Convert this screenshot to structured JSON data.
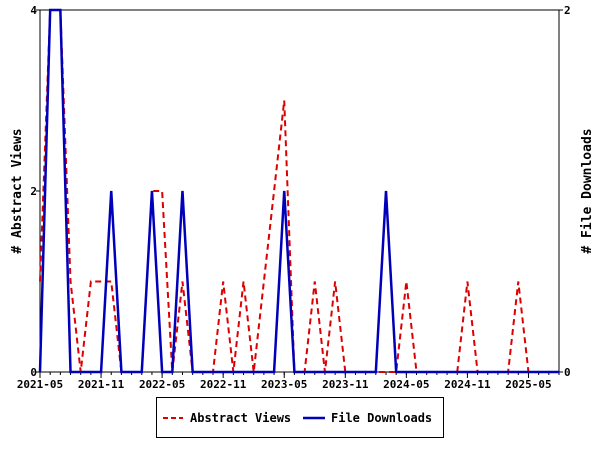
{
  "chart_data": {
    "type": "line",
    "x": [
      "2021-05",
      "2021-06",
      "2021-07",
      "2021-08",
      "2021-09",
      "2021-10",
      "2021-11",
      "2021-12",
      "2022-01",
      "2022-02",
      "2022-03",
      "2022-04",
      "2022-05",
      "2022-06",
      "2022-07",
      "2022-08",
      "2022-09",
      "2022-10",
      "2022-11",
      "2022-12",
      "2023-01",
      "2023-02",
      "2023-03",
      "2023-04",
      "2023-05",
      "2023-06",
      "2023-07",
      "2023-08",
      "2023-09",
      "2023-10",
      "2023-11",
      "2023-12",
      "2024-01",
      "2024-02",
      "2024-03",
      "2024-04",
      "2024-05",
      "2024-06",
      "2024-07",
      "2024-08",
      "2024-09",
      "2024-10",
      "2024-11",
      "2024-12",
      "2025-01",
      "2025-02",
      "2025-03",
      "2025-04",
      "2025-05",
      "2025-06",
      "2025-07",
      "2025-08"
    ],
    "x_ticks": [
      "2021-05",
      "2021-11",
      "2022-05",
      "2022-11",
      "2023-05",
      "2023-11",
      "2024-05",
      "2024-11",
      "2025-05"
    ],
    "series": [
      {
        "name": "Abstract Views",
        "axis": "left",
        "color": "#dd0000",
        "style": "dashed",
        "values": [
          1,
          4,
          4,
          1,
          0,
          1,
          1,
          1,
          0,
          0,
          0,
          2,
          2,
          0,
          1,
          0,
          0,
          0,
          1,
          0,
          1,
          0,
          1,
          2,
          3,
          0,
          0,
          1,
          0,
          1,
          0,
          0,
          0,
          0,
          0,
          0,
          1,
          0,
          0,
          0,
          0,
          0,
          1,
          0,
          0,
          0,
          0,
          1,
          0,
          0,
          0,
          0
        ]
      },
      {
        "name": "File Downloads",
        "axis": "right",
        "color": "#0000bb",
        "style": "solid",
        "values": [
          0,
          2,
          2,
          0,
          0,
          0,
          0,
          1,
          0,
          0,
          0,
          1,
          0,
          0,
          1,
          0,
          0,
          0,
          0,
          0,
          0,
          0,
          0,
          0,
          1,
          0,
          0,
          0,
          0,
          0,
          0,
          0,
          0,
          0,
          1,
          0,
          0,
          0,
          0,
          0,
          0,
          0,
          0,
          0,
          0,
          0,
          0,
          0,
          0,
          0,
          0,
          0
        ]
      }
    ],
    "ylabel": "# Abstract Views",
    "y2label": "# File Downloads",
    "ylim": [
      0,
      4
    ],
    "y2lim": [
      0,
      2
    ],
    "yticks": [
      "0",
      "2",
      "4"
    ],
    "y2ticks": [
      "0",
      "2"
    ],
    "legend_position": "bottom-center"
  }
}
